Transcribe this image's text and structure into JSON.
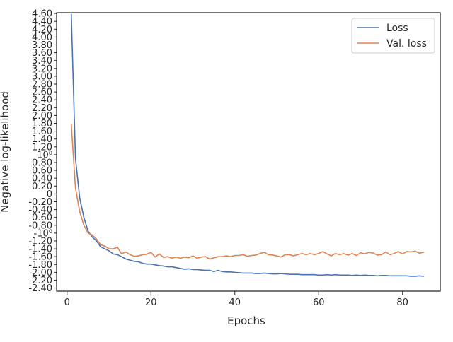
{
  "chart_data": {
    "type": "line",
    "title": "",
    "xlabel": "Epochs",
    "ylabel": "Negative log-likelihood",
    "xlim": [
      -2.5,
      89
    ],
    "ylim": [
      -2.48,
      4.62
    ],
    "grid": false,
    "legend_position": "top-right",
    "x_ticks": [
      {
        "value": 0,
        "label": "0"
      },
      {
        "value": 20,
        "label": "20"
      },
      {
        "value": 40,
        "label": "40"
      },
      {
        "value": 60,
        "label": "60"
      },
      {
        "value": 80,
        "label": "80"
      }
    ],
    "y_ticks": [
      {
        "value": 4.6,
        "label": "4.60"
      },
      {
        "value": 4.4,
        "label": "4.40"
      },
      {
        "value": 4.2,
        "label": "4.20"
      },
      {
        "value": 4.0,
        "label": "4.00"
      },
      {
        "value": 3.8,
        "label": "3.80"
      },
      {
        "value": 3.6,
        "label": "3.60"
      },
      {
        "value": 3.4,
        "label": "3.40"
      },
      {
        "value": 3.2,
        "label": "3.20"
      },
      {
        "value": 3.0,
        "label": "3.00"
      },
      {
        "value": 2.8,
        "label": "2.80"
      },
      {
        "value": 2.6,
        "label": "2.60"
      },
      {
        "value": 2.4,
        "label": "2.40"
      },
      {
        "value": 2.2,
        "label": "2.20"
      },
      {
        "value": 2.0,
        "label": "2.00"
      },
      {
        "value": 1.8,
        "label": "1.80"
      },
      {
        "value": 1.6,
        "label": "1.60"
      },
      {
        "value": 1.4,
        "label": "1.40"
      },
      {
        "value": 1.2,
        "label": "1.20"
      },
      {
        "value": 1.0,
        "label": "10⁰"
      },
      {
        "value": 0.8,
        "label": "0.80"
      },
      {
        "value": 0.6,
        "label": "0.60"
      },
      {
        "value": 0.4,
        "label": "0.40"
      },
      {
        "value": 0.2,
        "label": "0.20"
      },
      {
        "value": 0.0,
        "label": "0"
      },
      {
        "value": -0.2,
        "label": "-0.20"
      },
      {
        "value": -0.4,
        "label": "-0.40"
      },
      {
        "value": -0.6,
        "label": "-0.60"
      },
      {
        "value": -0.8,
        "label": "-0.80"
      },
      {
        "value": -1.0,
        "label": "-10⁰"
      },
      {
        "value": -1.2,
        "label": "-1.20"
      },
      {
        "value": -1.4,
        "label": "-1.40"
      },
      {
        "value": -1.6,
        "label": "-1.60"
      },
      {
        "value": -1.8,
        "label": "-1.80"
      },
      {
        "value": -2.0,
        "label": "-2.00"
      },
      {
        "value": -2.2,
        "label": "-2.20"
      },
      {
        "value": -2.4,
        "label": "-2.40"
      }
    ],
    "x": [
      1,
      2,
      3,
      4,
      5,
      6,
      7,
      8,
      9,
      10,
      11,
      12,
      13,
      14,
      15,
      16,
      17,
      18,
      19,
      20,
      21,
      22,
      23,
      24,
      25,
      26,
      27,
      28,
      29,
      30,
      31,
      32,
      33,
      34,
      35,
      36,
      37,
      38,
      39,
      40,
      41,
      42,
      43,
      44,
      45,
      46,
      47,
      48,
      49,
      50,
      51,
      52,
      53,
      54,
      55,
      56,
      57,
      58,
      59,
      60,
      61,
      62,
      63,
      64,
      65,
      66,
      67,
      68,
      69,
      70,
      71,
      72,
      73,
      74,
      75,
      76,
      77,
      78,
      79,
      80,
      81,
      82,
      83,
      84,
      85
    ],
    "series": [
      {
        "name": "Loss",
        "color": "#4c72b0",
        "values": [
          4.58,
          0.9,
          -0.1,
          -0.6,
          -0.95,
          -1.1,
          -1.2,
          -1.35,
          -1.4,
          -1.45,
          -1.53,
          -1.55,
          -1.6,
          -1.66,
          -1.69,
          -1.72,
          -1.73,
          -1.77,
          -1.79,
          -1.79,
          -1.81,
          -1.83,
          -1.84,
          -1.86,
          -1.86,
          -1.88,
          -1.9,
          -1.92,
          -1.91,
          -1.93,
          -1.93,
          -1.94,
          -1.95,
          -1.95,
          -1.98,
          -1.95,
          -1.98,
          -1.99,
          -1.99,
          -2.0,
          -2.01,
          -2.02,
          -2.02,
          -2.02,
          -2.03,
          -2.03,
          -2.02,
          -2.03,
          -2.04,
          -2.04,
          -2.03,
          -2.04,
          -2.05,
          -2.05,
          -2.05,
          -2.06,
          -2.06,
          -2.06,
          -2.06,
          -2.07,
          -2.07,
          -2.06,
          -2.07,
          -2.06,
          -2.07,
          -2.07,
          -2.07,
          -2.08,
          -2.07,
          -2.08,
          -2.07,
          -2.08,
          -2.08,
          -2.09,
          -2.08,
          -2.08,
          -2.09,
          -2.09,
          -2.09,
          -2.09,
          -2.09,
          -2.1,
          -2.1,
          -2.09,
          -2.1
        ]
      },
      {
        "name": "Val. loss",
        "color": "#dd8452",
        "values": [
          1.77,
          0.15,
          -0.45,
          -0.8,
          -1.0,
          -1.05,
          -1.15,
          -1.3,
          -1.33,
          -1.4,
          -1.4,
          -1.36,
          -1.53,
          -1.48,
          -1.55,
          -1.59,
          -1.58,
          -1.55,
          -1.54,
          -1.49,
          -1.61,
          -1.53,
          -1.62,
          -1.6,
          -1.64,
          -1.61,
          -1.64,
          -1.61,
          -1.63,
          -1.58,
          -1.64,
          -1.61,
          -1.6,
          -1.66,
          -1.63,
          -1.6,
          -1.6,
          -1.58,
          -1.6,
          -1.57,
          -1.57,
          -1.55,
          -1.59,
          -1.57,
          -1.56,
          -1.52,
          -1.49,
          -1.55,
          -1.56,
          -1.58,
          -1.61,
          -1.55,
          -1.55,
          -1.58,
          -1.55,
          -1.52,
          -1.55,
          -1.52,
          -1.55,
          -1.52,
          -1.47,
          -1.53,
          -1.58,
          -1.52,
          -1.55,
          -1.52,
          -1.56,
          -1.52,
          -1.57,
          -1.5,
          -1.53,
          -1.49,
          -1.51,
          -1.56,
          -1.55,
          -1.48,
          -1.55,
          -1.52,
          -1.47,
          -1.53,
          -1.47,
          -1.48,
          -1.46,
          -1.51,
          -1.49
        ]
      }
    ]
  }
}
